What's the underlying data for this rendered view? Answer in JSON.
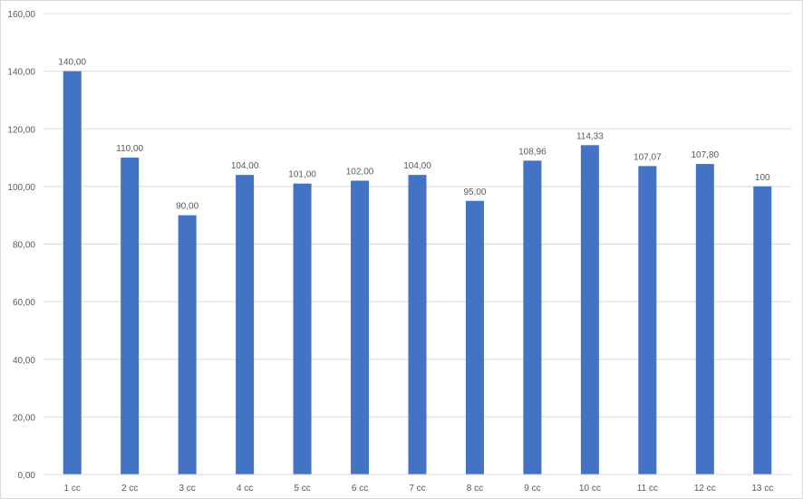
{
  "chart_data": {
    "type": "bar",
    "title": "",
    "xlabel": "",
    "ylabel": "",
    "categories": [
      "1 cc",
      "2 cc",
      "3 cc",
      "4 cc",
      "5 cc",
      "6 cc",
      "7 cc",
      "8 cc",
      "9 cc",
      "10 cc",
      "11 cc",
      "12 cc",
      "13 cc"
    ],
    "values": [
      140.0,
      110.0,
      90.0,
      104.0,
      101.0,
      102.0,
      104.0,
      95.0,
      108.96,
      114.33,
      107.07,
      107.8,
      100
    ],
    "data_labels": [
      "140,00",
      "110,00",
      "90,00",
      "104,00",
      "101,00",
      "102,00",
      "104,00",
      "95,00",
      "108,96",
      "114,33",
      "107,07",
      "107,80",
      "100"
    ],
    "ylim": [
      0,
      160
    ],
    "yticks": [
      0,
      20,
      40,
      60,
      80,
      100,
      120,
      140,
      160
    ],
    "ytick_labels": [
      "0,00",
      "20,00",
      "40,00",
      "60,00",
      "80,00",
      "100,00",
      "120,00",
      "140,00",
      "160,00"
    ],
    "grid": true,
    "legend": "none",
    "colors": {
      "bar": "#4472C4",
      "grid": "#d9d9d9",
      "text": "#595959"
    }
  }
}
